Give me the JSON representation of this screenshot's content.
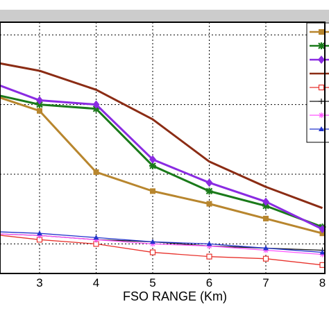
{
  "chart_data": {
    "type": "line",
    "title": "",
    "xlabel": "FSO RANGE (Km)",
    "ylabel": "",
    "x": [
      2,
      3,
      4,
      5,
      6,
      7,
      8
    ],
    "xticks": [
      "3",
      "4",
      "5",
      "6",
      "7",
      "8"
    ],
    "xlim": [
      2,
      8
    ],
    "grid": true,
    "legend_position": "top-right",
    "colors": {
      "frame_band": "#cccccc",
      "grid": "#000000"
    },
    "series": [
      {
        "color": "#b8862e",
        "marker": "square-filled",
        "values": [
          0.72,
          0.63,
          0.34,
          0.25,
          0.19,
          0.12,
          0.05
        ]
      },
      {
        "color": "#1a7a1a",
        "marker": "star-filled",
        "values": [
          0.72,
          0.66,
          0.64,
          0.37,
          0.25,
          0.18,
          0.08
        ]
      },
      {
        "color": "#8a2be2",
        "marker": "diamond-filled",
        "values": [
          0.78,
          0.68,
          0.66,
          0.4,
          0.29,
          0.2,
          0.07
        ]
      },
      {
        "color": "#8b2c14",
        "marker": "none",
        "values": [
          0.87,
          0.82,
          0.73,
          0.59,
          0.39,
          0.27,
          0.17
        ]
      },
      {
        "color": "#e8322c",
        "marker": "square-open",
        "values": [
          0.05,
          0.02,
          0.0,
          -0.04,
          -0.06,
          -0.07,
          -0.1
        ]
      },
      {
        "color": "#111111",
        "marker": "plus",
        "values": [
          0.05,
          0.04,
          0.02,
          0.01,
          -0.01,
          -0.02,
          -0.03
        ]
      },
      {
        "color": "#ff55ff",
        "marker": "star-open",
        "values": [
          0.05,
          0.04,
          0.02,
          0.0,
          -0.01,
          -0.03,
          -0.05
        ]
      },
      {
        "color": "#2233cc",
        "marker": "triangle",
        "values": [
          0.06,
          0.05,
          0.03,
          0.01,
          0.0,
          -0.02,
          -0.04
        ]
      }
    ],
    "ylim": [
      -0.14,
      1.05
    ],
    "ygrid": [
      0.0,
      0.33,
      0.66,
      0.99
    ]
  }
}
